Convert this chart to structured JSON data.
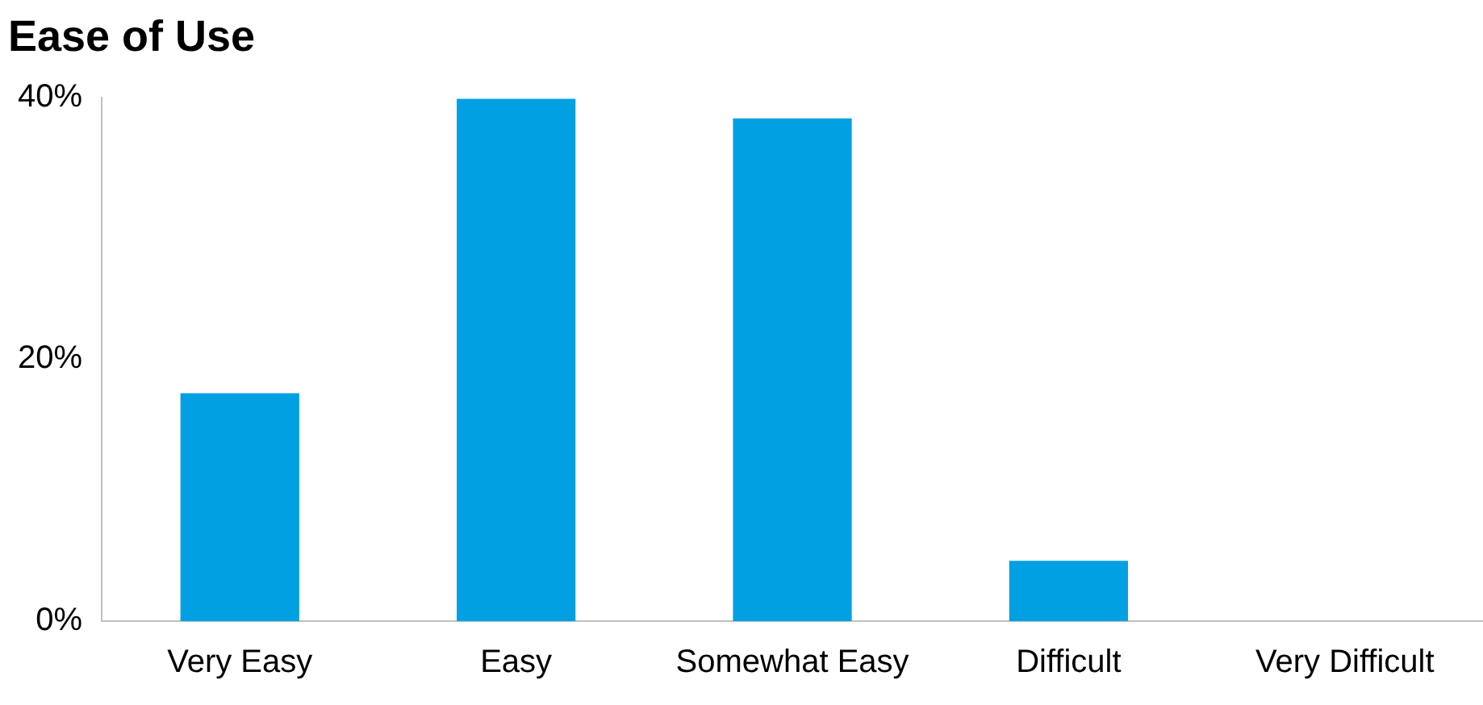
{
  "chart_data": {
    "type": "bar",
    "title": "Ease of Use",
    "categories": [
      "Very Easy",
      "Easy",
      "Somewhat Easy",
      "Difficult",
      "Very Difficult"
    ],
    "values": [
      17.4,
      39.9,
      38.4,
      4.6,
      0
    ],
    "color": "#00a0e3",
    "ylim": [
      0,
      40
    ],
    "yticks": [
      {
        "value": 0,
        "label": "0%"
      },
      {
        "value": 20,
        "label": "20%"
      },
      {
        "value": 40,
        "label": "40%"
      }
    ],
    "grid": false,
    "legend": false
  }
}
